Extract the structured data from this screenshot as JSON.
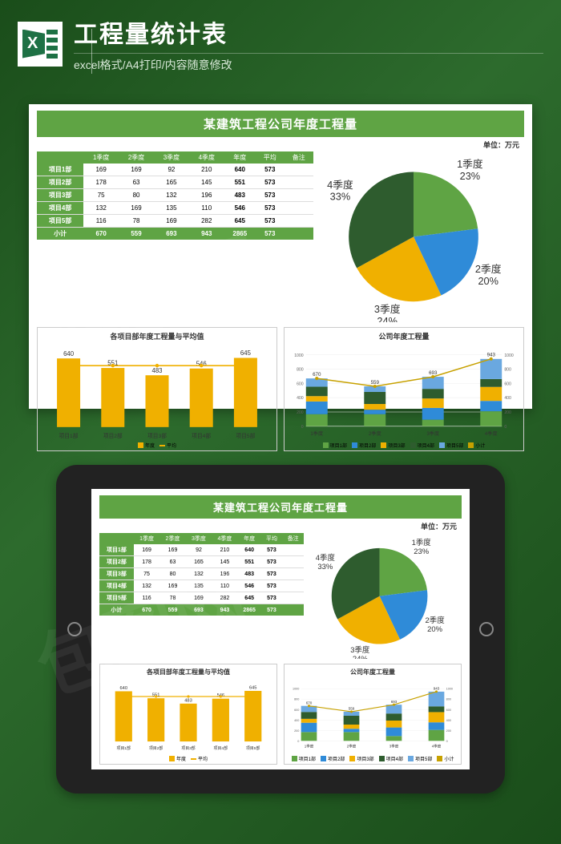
{
  "header": {
    "title": "工程量统计表",
    "subtitle": "excel格式/A4打印/内容随意修改"
  },
  "report": {
    "title": "某建筑工程公司年度工程量",
    "unit": "单位：万元",
    "table": {
      "columns": [
        "",
        "1季度",
        "2季度",
        "3季度",
        "4季度",
        "年度",
        "平均",
        "备注"
      ],
      "rows": [
        [
          "项目1部",
          "169",
          "169",
          "92",
          "210",
          "640",
          "573",
          ""
        ],
        [
          "项目2部",
          "178",
          "63",
          "165",
          "145",
          "551",
          "573",
          ""
        ],
        [
          "项目3部",
          "75",
          "80",
          "132",
          "196",
          "483",
          "573",
          ""
        ],
        [
          "项目4部",
          "132",
          "169",
          "135",
          "110",
          "546",
          "573",
          ""
        ],
        [
          "项目5部",
          "116",
          "78",
          "169",
          "282",
          "645",
          "573",
          ""
        ]
      ],
      "footer": [
        "小计",
        "670",
        "559",
        "693",
        "943",
        "2865",
        "573",
        ""
      ]
    },
    "pie": {
      "slices": [
        {
          "label": "1季度",
          "pct": 23,
          "color": "#5fa444"
        },
        {
          "label": "2季度",
          "pct": 20,
          "color": "#2f8bd8"
        },
        {
          "label": "3季度",
          "pct": 24,
          "color": "#f0b000"
        },
        {
          "label": "4季度",
          "pct": 33,
          "color": "#2e5c2e"
        }
      ]
    },
    "barChart": {
      "title": "各项目部年度工程量与平均值",
      "ylim": [
        0,
        700
      ],
      "categories": [
        "项目1部",
        "项目2部",
        "项目3部",
        "项目4部",
        "项目5部"
      ],
      "bars": [
        640,
        551,
        483,
        546,
        645
      ],
      "line": [
        573,
        573,
        573,
        573,
        573
      ],
      "bar_color": "#f0b000",
      "line_color": "#f0b000",
      "legend": [
        {
          "label": "年度",
          "color": "#f0b000",
          "type": "bar"
        },
        {
          "label": "平均",
          "color": "#f0b000",
          "type": "line"
        }
      ]
    },
    "stackChart": {
      "title": "公司年度工程量",
      "ylim": [
        0,
        1000
      ],
      "ytick_step": 200,
      "categories": [
        "1季度",
        "2季度",
        "3季度",
        "4季度"
      ],
      "stacks": [
        [
          169,
          178,
          75,
          132,
          116
        ],
        [
          169,
          63,
          80,
          169,
          78
        ],
        [
          92,
          165,
          132,
          135,
          169
        ],
        [
          210,
          145,
          196,
          110,
          282
        ]
      ],
      "totals": [
        670,
        559,
        693,
        943
      ],
      "series": [
        {
          "label": "项目1部",
          "color": "#5fa444"
        },
        {
          "label": "项目2部",
          "color": "#2f8bd8"
        },
        {
          "label": "项目3部",
          "color": "#f0b000"
        },
        {
          "label": "项目4部",
          "color": "#2e5c2e"
        },
        {
          "label": "项目5部",
          "color": "#6aa8e0"
        },
        {
          "label": "小计",
          "color": "#c7a100"
        }
      ]
    }
  }
}
